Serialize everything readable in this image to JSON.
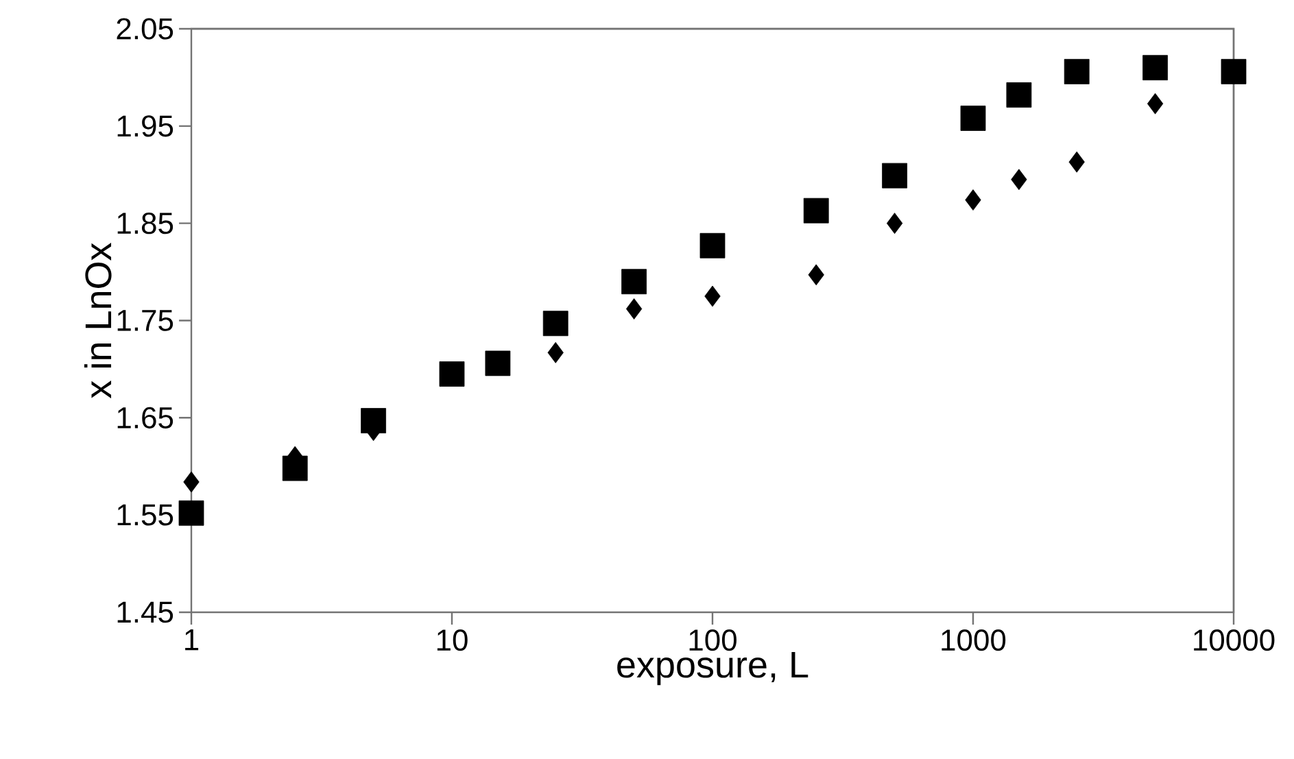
{
  "chart_data": {
    "type": "scatter",
    "xlabel": "exposure, L",
    "ylabel": "x in LnOx",
    "log": "x",
    "xlim": [
      1,
      10000
    ],
    "xticks": [
      1,
      10,
      100,
      1000,
      10000
    ],
    "ylim": [
      1.45,
      2.05
    ],
    "yticks": [
      1.45,
      1.55,
      1.65,
      1.75,
      1.85,
      1.95,
      2.05
    ],
    "series": [
      {
        "color": "#000000",
        "marker": "square",
        "x": [
          1,
          2.5,
          5,
          10,
          15,
          25,
          50,
          100,
          250,
          500,
          1000,
          1500,
          2500,
          5000,
          10000
        ],
        "values": [
          1.552,
          1.598,
          1.647,
          1.695,
          1.706,
          1.747,
          1.79,
          1.827,
          1.863,
          1.899,
          1.958,
          1.982,
          2.006,
          2.01,
          2.006
        ]
      },
      {
        "color": "#000000",
        "marker": "diamond",
        "x": [
          1,
          2.5,
          5,
          25,
          50,
          100,
          250,
          500,
          1000,
          1500,
          2500,
          5000
        ],
        "values": [
          1.584,
          1.61,
          1.637,
          1.717,
          1.762,
          1.775,
          1.797,
          1.85,
          1.874,
          1.895,
          1.913,
          1.973
        ]
      }
    ]
  }
}
